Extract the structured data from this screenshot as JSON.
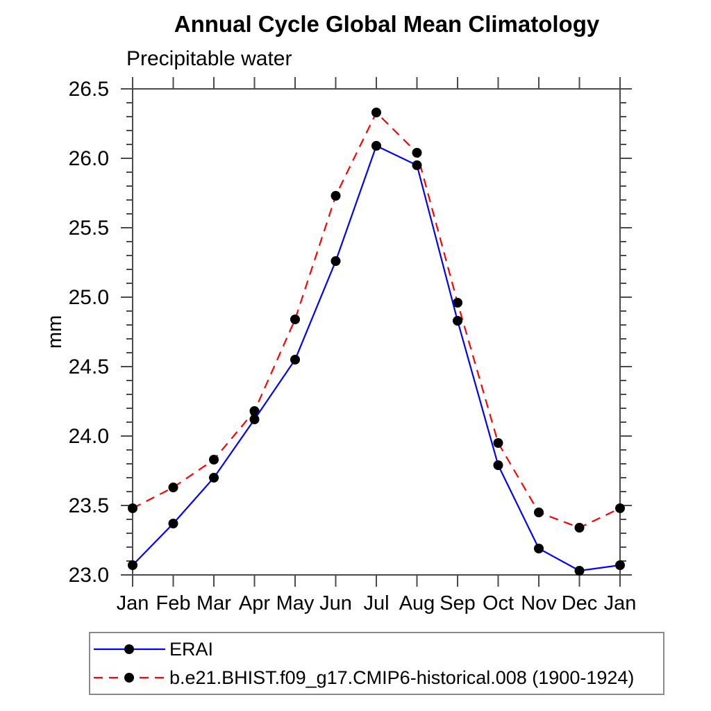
{
  "title": "Annual Cycle Global Mean Climatology",
  "subtitle": "Precipitable water",
  "y_axis_label": "mm",
  "colors": {
    "erai_line": "#0000ff",
    "model_line": "#ff0000",
    "marker": "#000000",
    "axis": "#4a4a4a",
    "text": "#000000"
  },
  "legend": {
    "items": [
      {
        "label": "ERAI",
        "color": "#0000ff",
        "style": "solid"
      },
      {
        "label": "b.e21.BHIST.f09_g17.CMIP6-historical.008 (1900-1924)",
        "color": "#ff0000",
        "style": "dashed"
      }
    ]
  },
  "chart_data": {
    "type": "line",
    "title": "Annual Cycle Global Mean Climatology",
    "subtitle": "Precipitable water",
    "ylabel": "mm",
    "xlabel": "",
    "categories": [
      "Jan",
      "Feb",
      "Mar",
      "Apr",
      "May",
      "Jun",
      "Jul",
      "Aug",
      "Sep",
      "Oct",
      "Nov",
      "Dec",
      "Jan"
    ],
    "series": [
      {
        "name": "ERAI",
        "color": "#0000ff",
        "line_style": "solid",
        "marker": "circle",
        "values": [
          23.07,
          23.37,
          23.7,
          24.12,
          24.55,
          25.26,
          26.09,
          25.95,
          24.83,
          23.79,
          23.19,
          23.03,
          23.07
        ]
      },
      {
        "name": "b.e21.BHIST.f09_g17.CMIP6-historical.008 (1900-1924)",
        "color": "#ff0000",
        "line_style": "dashed",
        "marker": "circle",
        "values": [
          23.48,
          23.63,
          23.83,
          24.18,
          24.84,
          25.73,
          26.33,
          26.04,
          24.96,
          23.95,
          23.45,
          23.34,
          23.48
        ]
      }
    ],
    "ylim": [
      23.0,
      26.5
    ],
    "ytick_step": 0.5,
    "yminor_step": 0.1,
    "ytick_labels": [
      "23.0",
      "23.5",
      "24.0",
      "24.5",
      "25.0",
      "25.5",
      "26.0",
      "26.5"
    ],
    "grid": false,
    "legend_position": "bottom"
  }
}
